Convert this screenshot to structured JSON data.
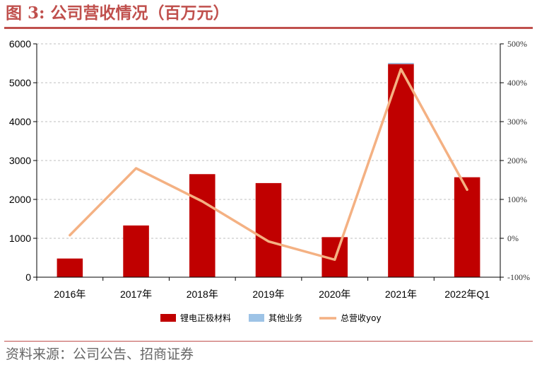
{
  "header": {
    "figure_label": "图 3:",
    "title": "公司营收情况（百万元）"
  },
  "source": "资料来源：公司公告、招商证券",
  "colors": {
    "accent": "#c0504d",
    "bar_main": "#c00000",
    "bar_other": "#9dc3e6",
    "line": "#f4b183"
  },
  "chart_data": {
    "type": "bar",
    "categories": [
      "2016年",
      "2017年",
      "2018年",
      "2019年",
      "2020年",
      "2021年",
      "2022年Q1"
    ],
    "series": [
      {
        "name": "锂电正极材料",
        "kind": "bar",
        "axis": "left",
        "color": "#c00000",
        "values": [
          480,
          1330,
          2650,
          2420,
          1030,
          5480,
          2570
        ]
      },
      {
        "name": "其他业务",
        "kind": "bar",
        "axis": "left",
        "stacked": true,
        "color": "#9dc3e6",
        "values": [
          0,
          0,
          0,
          0,
          0,
          30,
          0
        ]
      },
      {
        "name": "总营收yoy",
        "kind": "line",
        "axis": "right",
        "unit": "%",
        "color": "#f4b183",
        "values": [
          8,
          180,
          95,
          -8,
          -55,
          435,
          125
        ]
      }
    ],
    "y_left": {
      "min": 0,
      "max": 6000,
      "ticks": [
        0,
        1000,
        2000,
        3000,
        4000,
        5000,
        6000
      ]
    },
    "y_right": {
      "min": -100,
      "max": 500,
      "ticks": [
        "-100%",
        "0%",
        "100%",
        "200%",
        "300%",
        "400%",
        "500%"
      ]
    },
    "grid": true,
    "legend_position": "bottom"
  }
}
